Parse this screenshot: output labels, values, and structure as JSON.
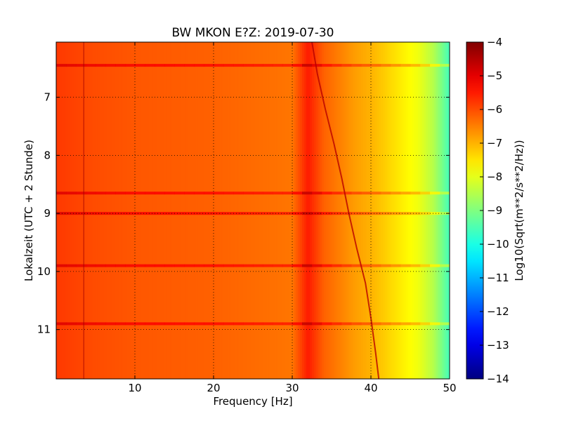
{
  "chart_data": {
    "type": "heatmap",
    "title": "BW MKON E?Z: 2019-07-30",
    "xlabel": "Frequency [Hz]",
    "ylabel": "Lokalzeit (UTC + 2 Stunde)",
    "xlim": [
      0,
      50
    ],
    "ylim": [
      11.85,
      6.05
    ],
    "x_ticks": [
      10,
      20,
      30,
      40,
      50
    ],
    "x_tick_labels": [
      "10",
      "20",
      "30",
      "40",
      "50"
    ],
    "y_ticks": [
      7,
      8,
      9,
      10,
      11
    ],
    "y_tick_labels": [
      "7",
      "8",
      "9",
      "10",
      "11"
    ],
    "grid": true,
    "colorbar": {
      "label": "Log10(Sqrt(m**2/s**2/Hz))",
      "range": [
        -14,
        -4
      ],
      "ticks": [
        -4,
        -5,
        -6,
        -7,
        -8,
        -9,
        -10,
        -11,
        -12,
        -13,
        -14
      ],
      "tick_labels": [
        "−4",
        "−5",
        "−6",
        "−7",
        "−8",
        "−9",
        "−10",
        "−11",
        "−12",
        "−13",
        "−14"
      ],
      "colormap": "jet"
    },
    "spectral_profile": {
      "frequency_hz": [
        0,
        5,
        10,
        15,
        20,
        25,
        30,
        32,
        34,
        36,
        38,
        40,
        42,
        44,
        46,
        48,
        50
      ],
      "log10_amplitude": [
        -5.8,
        -6.0,
        -6.1,
        -6.15,
        -6.2,
        -6.3,
        -6.4,
        -5.5,
        -6.2,
        -6.5,
        -6.8,
        -7.0,
        -7.3,
        -7.6,
        -7.9,
        -8.5,
        -9.6
      ]
    },
    "strong_horizontal_bands_hours": [
      6.45,
      8.65,
      9.0,
      9.9,
      10.9
    ],
    "drifting_line": {
      "time_hours": [
        6.05,
        6.6,
        7.2,
        7.8,
        8.4,
        9.0,
        9.6,
        10.2,
        10.8,
        11.4,
        11.85
      ],
      "frequency_hz": [
        32.5,
        33.2,
        34.2,
        35.3,
        36.3,
        37.2,
        38.2,
        39.3,
        40.0,
        40.6,
        41.0
      ]
    },
    "vertical_line_hz": 3.5
  }
}
